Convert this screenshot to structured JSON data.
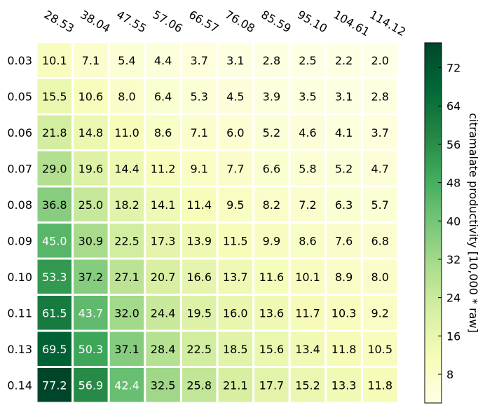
{
  "chart_data": {
    "type": "heatmap",
    "title": "",
    "xlabel": "",
    "ylabel": "",
    "x_categories": [
      "28.53",
      "38.04",
      "47.55",
      "57.06",
      "66.57",
      "76.08",
      "85.59",
      "95.10",
      "104.61",
      "114.12"
    ],
    "y_categories": [
      "0.03",
      "0.05",
      "0.06",
      "0.07",
      "0.08",
      "0.09",
      "0.10",
      "0.11",
      "0.13",
      "0.14"
    ],
    "values": [
      [
        10.1,
        7.1,
        5.4,
        4.4,
        3.7,
        3.1,
        2.8,
        2.5,
        2.2,
        2.0
      ],
      [
        15.5,
        10.6,
        8.0,
        6.4,
        5.3,
        4.5,
        3.9,
        3.5,
        3.1,
        2.8
      ],
      [
        21.8,
        14.8,
        11.0,
        8.6,
        7.1,
        6.0,
        5.2,
        4.6,
        4.1,
        3.7
      ],
      [
        29.0,
        19.6,
        14.4,
        11.2,
        9.1,
        7.7,
        6.6,
        5.8,
        5.2,
        4.7
      ],
      [
        36.8,
        25.0,
        18.2,
        14.1,
        11.4,
        9.5,
        8.2,
        7.2,
        6.3,
        5.7
      ],
      [
        45.0,
        30.9,
        22.5,
        17.3,
        13.9,
        11.5,
        9.9,
        8.6,
        7.6,
        6.8
      ],
      [
        53.3,
        37.2,
        27.1,
        20.7,
        16.6,
        13.7,
        11.6,
        10.1,
        8.9,
        8.0
      ],
      [
        61.5,
        43.7,
        32.0,
        24.4,
        19.5,
        16.0,
        13.6,
        11.7,
        10.3,
        9.2
      ],
      [
        69.5,
        50.3,
        37.1,
        28.4,
        22.5,
        18.5,
        15.6,
        13.4,
        11.8,
        10.5
      ],
      [
        77.2,
        56.9,
        42.4,
        32.5,
        25.8,
        21.1,
        17.7,
        15.2,
        13.3,
        11.8
      ]
    ],
    "colormap": "YlGn",
    "colorbar": {
      "label": "citramalate productivity [10,000 * raw]",
      "range": [
        2.0,
        77.2
      ],
      "ticks": [
        "8",
        "16",
        "24",
        "32",
        "40",
        "48",
        "56",
        "64",
        "72"
      ]
    },
    "x_tick_position": "top",
    "x_tick_rotation": "-30deg",
    "grid": false,
    "legend": "none"
  }
}
